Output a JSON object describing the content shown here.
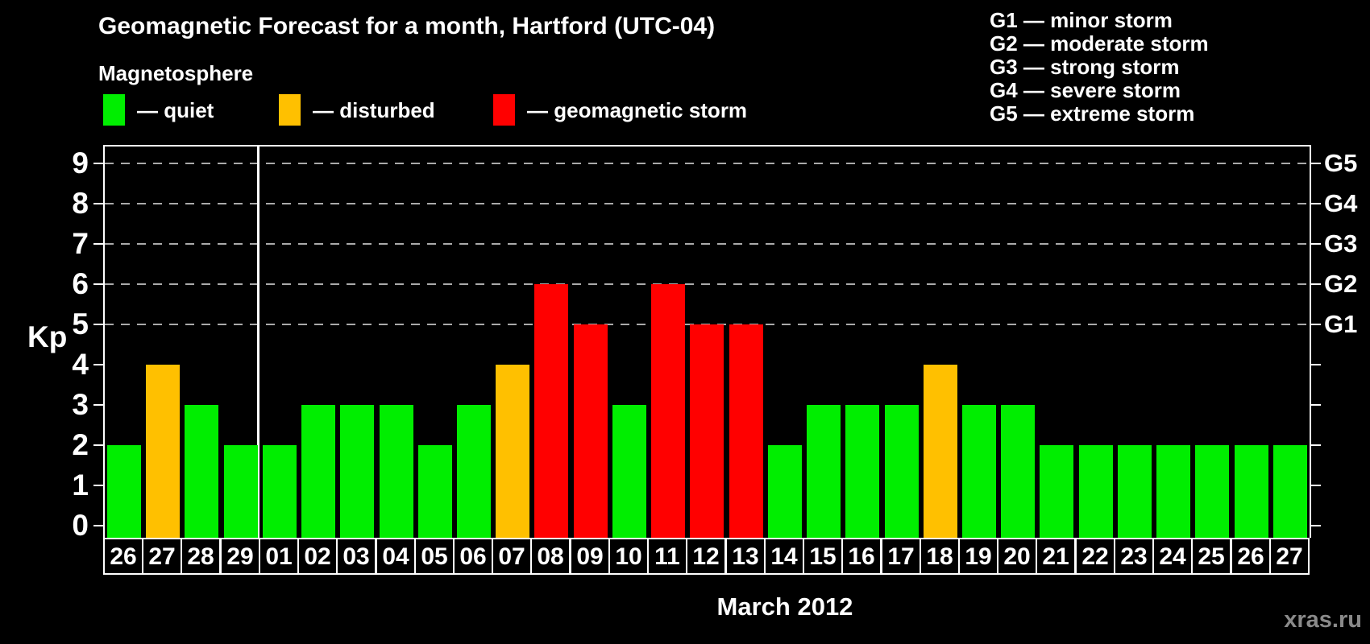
{
  "header": {
    "title": "Geomagnetic Forecast for a month, Hartford (UTC-04)",
    "subtitle": "Magnetosphere"
  },
  "legend": {
    "items": [
      {
        "key": "quiet",
        "label": "— quiet",
        "color": "#00ee00"
      },
      {
        "key": "disturbed",
        "label": "— disturbed",
        "color": "#ffc000"
      },
      {
        "key": "storm",
        "label": "— geomagnetic storm",
        "color": "#ff0000"
      }
    ]
  },
  "g_scale_legend": {
    "items": [
      "G1 — minor storm",
      "G2 — moderate storm",
      "G3 — strong storm",
      "G4 — severe storm",
      "G5 — extreme storm"
    ]
  },
  "watermark": "xras.ru",
  "chart_data": {
    "type": "bar",
    "title": "Geomagnetic Forecast for a month, Hartford (UTC-04)",
    "xlabel": "March 2012",
    "ylabel": "Kp",
    "ylim": [
      0,
      9
    ],
    "y_ticks": [
      0,
      1,
      2,
      3,
      4,
      5,
      6,
      7,
      8,
      9
    ],
    "right_axis_labels": {
      "5": "G1",
      "6": "G2",
      "7": "G3",
      "8": "G4",
      "9": "G5"
    },
    "gridlines_at": [
      5,
      6,
      7,
      8,
      9
    ],
    "grid": "horizontal dashed lines at Kp 5-9 only",
    "legend_position": "top-left",
    "categories": [
      "26",
      "27",
      "28",
      "29",
      "01",
      "02",
      "03",
      "04",
      "05",
      "06",
      "07",
      "08",
      "09",
      "10",
      "11",
      "12",
      "13",
      "14",
      "15",
      "16",
      "17",
      "18",
      "19",
      "20",
      "21",
      "22",
      "23",
      "24",
      "25",
      "26",
      "27"
    ],
    "values": [
      2,
      4,
      3,
      2,
      2,
      3,
      3,
      3,
      2,
      3,
      4,
      6,
      5,
      3,
      6,
      5,
      5,
      2,
      3,
      3,
      3,
      4,
      3,
      3,
      2,
      2,
      2,
      2,
      2,
      2,
      2
    ],
    "statuses": [
      "quiet",
      "disturbed",
      "quiet",
      "quiet",
      "quiet",
      "quiet",
      "quiet",
      "quiet",
      "quiet",
      "quiet",
      "disturbed",
      "storm",
      "storm",
      "quiet",
      "storm",
      "storm",
      "storm",
      "quiet",
      "quiet",
      "quiet",
      "quiet",
      "disturbed",
      "quiet",
      "quiet",
      "quiet",
      "quiet",
      "quiet",
      "quiet",
      "quiet",
      "quiet",
      "quiet"
    ],
    "colors": {
      "quiet": "#00ee00",
      "disturbed": "#ffc000",
      "storm": "#ff0000"
    },
    "month_separator_after_index": 3
  }
}
